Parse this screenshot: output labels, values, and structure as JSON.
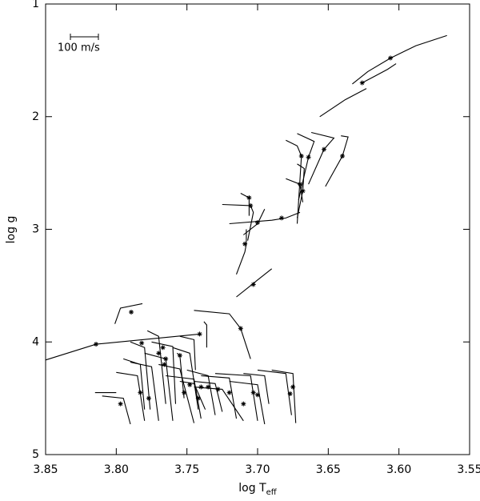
{
  "chart_data": {
    "type": "line",
    "xlabel": {
      "text": "log T",
      "subscript": "eff"
    },
    "ylabel": "log g",
    "annotation": "100 m/s",
    "xlim": [
      3.85,
      3.55
    ],
    "ylim": [
      5,
      1
    ],
    "xticks": [
      3.85,
      {
        "value": 3.8,
        "label": "3.80"
      },
      3.75,
      {
        "value": 3.7,
        "label": "3.70"
      },
      3.65,
      {
        "value": 3.6,
        "label": "3.60"
      },
      3.55
    ],
    "yticks": [
      1,
      2,
      3,
      4,
      5
    ],
    "color": "#000000",
    "tracks": [
      {
        "x": [
          3.566,
          3.588,
          3.606,
          3.622,
          3.633
        ],
        "y": [
          1.28,
          1.37,
          1.48,
          1.6,
          1.71
        ]
      },
      {
        "x": [
          3.602,
          3.608,
          3.617,
          3.626
        ],
        "y": [
          1.53,
          1.58,
          1.64,
          1.7
        ]
      },
      {
        "x": [
          3.623,
          3.638,
          3.656
        ],
        "y": [
          1.75,
          1.85,
          2.0
        ]
      },
      {
        "x": [
          3.641,
          3.636,
          3.64,
          3.652
        ],
        "y": [
          2.17,
          2.18,
          2.35,
          2.62
        ]
      },
      {
        "x": [
          3.662,
          3.646,
          3.653,
          3.664
        ],
        "y": [
          2.14,
          2.19,
          2.29,
          2.6
        ]
      },
      {
        "x": [
          3.672,
          3.66,
          3.664,
          3.671
        ],
        "y": [
          2.15,
          2.22,
          2.36,
          2.74
        ]
      },
      {
        "x": [
          3.68,
          3.672,
          3.669,
          3.672
        ],
        "y": [
          2.21,
          2.26,
          2.35,
          2.95
        ]
      },
      {
        "x": [
          3.672,
          3.667,
          3.668,
          3.672
        ],
        "y": [
          2.42,
          2.46,
          2.66,
          2.9
        ]
      },
      {
        "x": [
          3.68,
          3.67,
          3.668
        ],
        "y": [
          2.55,
          2.6,
          2.76
        ]
      },
      {
        "x": [
          3.725,
          3.705,
          3.703,
          3.707
        ],
        "y": [
          2.78,
          2.79,
          2.85,
          3.1
        ]
      },
      {
        "x": [
          3.712,
          3.706,
          3.706
        ],
        "y": [
          2.68,
          2.72,
          2.88
        ]
      },
      {
        "x": [
          3.72,
          3.69,
          3.68,
          3.67
        ],
        "y": [
          2.95,
          2.92,
          2.9,
          2.85
        ]
      },
      {
        "x": [
          3.71,
          3.7,
          3.695
        ],
        "y": [
          3.05,
          2.95,
          2.82
        ]
      },
      {
        "x": [
          3.715,
          3.709,
          3.708,
          3.708
        ],
        "y": [
          3.4,
          3.2,
          3.13,
          3.0
        ]
      },
      {
        "x": [
          3.69,
          3.7,
          3.705,
          3.715
        ],
        "y": [
          3.35,
          3.45,
          3.5,
          3.6
        ]
      },
      {
        "x": [
          3.745,
          3.72,
          3.712,
          3.705
        ],
        "y": [
          3.72,
          3.75,
          3.88,
          4.15
        ]
      },
      {
        "x": [
          3.7815,
          3.797,
          3.801
        ],
        "y": [
          3.66,
          3.7,
          3.84
        ]
      },
      {
        "x": [
          3.85,
          3.8143,
          3.741
        ],
        "y": [
          4.16,
          4.02,
          3.93
        ]
      },
      {
        "x": [
          3.775,
          3.76,
          3.758
        ],
        "y": [
          4.0,
          4.04,
          4.55
        ]
      },
      {
        "x": [
          3.76,
          3.748,
          3.742
        ],
        "y": [
          4.05,
          4.1,
          4.6
        ]
      },
      {
        "x": [
          3.79,
          3.775,
          3.77
        ],
        "y": [
          4.18,
          4.22,
          4.7
        ]
      },
      {
        "x": [
          3.8,
          3.785,
          3.78
        ],
        "y": [
          4.27,
          4.3,
          4.7
        ]
      },
      {
        "x": [
          3.81,
          3.795,
          3.79
        ],
        "y": [
          4.48,
          4.5,
          4.73
        ]
      },
      {
        "x": [
          3.77,
          3.755,
          3.745
        ],
        "y": [
          4.2,
          4.24,
          4.72
        ]
      },
      {
        "x": [
          3.78,
          3.765,
          3.76
        ],
        "y": [
          4.1,
          4.15,
          4.7
        ]
      },
      {
        "x": [
          3.75,
          3.735,
          3.73
        ],
        "y": [
          4.25,
          4.3,
          4.65
        ]
      },
      {
        "x": [
          3.74,
          3.72,
          3.715
        ],
        "y": [
          4.3,
          4.32,
          4.68
        ]
      },
      {
        "x": [
          3.745,
          3.73,
          3.725
        ],
        "y": [
          4.35,
          4.37,
          4.62
        ]
      },
      {
        "x": [
          3.73,
          3.705,
          3.7
        ],
        "y": [
          4.28,
          4.3,
          4.7
        ]
      },
      {
        "x": [
          3.72,
          3.7,
          3.695
        ],
        "y": [
          4.35,
          4.38,
          4.73
        ]
      },
      {
        "x": [
          3.71,
          3.695,
          3.692
        ],
        "y": [
          4.28,
          4.3,
          4.55
        ]
      },
      {
        "x": [
          3.69,
          3.675,
          3.673
        ],
        "y": [
          4.25,
          4.28,
          4.72
        ]
      },
      {
        "x": [
          3.7,
          3.68,
          3.676
        ],
        "y": [
          4.25,
          4.28,
          4.65
        ]
      },
      {
        "x": [
          3.745,
          3.725,
          3.71
        ],
        "y": [
          4.4,
          4.42,
          4.7
        ]
      },
      {
        "x": [
          3.765,
          3.745,
          3.74
        ],
        "y": [
          4.3,
          4.33,
          4.68
        ]
      },
      {
        "x": [
          3.755,
          3.745,
          3.737
        ],
        "y": [
          4.35,
          4.37,
          4.6
        ]
      },
      {
        "x": [
          3.778,
          3.77,
          3.765
        ],
        "y": [
          3.9,
          3.95,
          4.55
        ]
      },
      {
        "x": [
          3.757,
          3.755,
          3.752
        ],
        "y": [
          4.1,
          4.12,
          4.5
        ]
      },
      {
        "x": [
          3.795,
          3.783,
          3.78
        ],
        "y": [
          4.15,
          4.2,
          4.6
        ]
      },
      {
        "x": [
          3.755,
          3.745,
          3.744
        ],
        "y": [
          3.95,
          3.98,
          4.25
        ]
      },
      {
        "x": [
          3.79,
          3.78,
          3.776
        ],
        "y": [
          4.0,
          4.05,
          4.6
        ]
      },
      {
        "x": [
          3.815,
          3.8
        ],
        "y": [
          4.45,
          4.45
        ]
      },
      {
        "x": [
          3.738,
          3.736,
          3.736
        ],
        "y": [
          3.82,
          3.85,
          4.05
        ]
      }
    ],
    "stars": {
      "x": [
        3.606,
        3.626,
        3.64,
        3.653,
        3.664,
        3.669,
        3.668,
        3.67,
        3.705,
        3.706,
        3.683,
        3.7,
        3.709,
        3.703,
        3.712,
        3.7894,
        3.8143,
        3.741,
        3.765,
        3.748,
        3.777,
        3.783,
        3.797,
        3.752,
        3.77,
        3.735,
        3.72,
        3.728,
        3.703,
        3.7,
        3.675,
        3.677,
        3.71,
        3.742,
        3.74,
        3.766,
        3.755,
        3.782,
        3.767
      ],
      "y": [
        1.48,
        1.7,
        2.35,
        2.29,
        2.36,
        2.35,
        2.66,
        2.6,
        2.79,
        2.72,
        2.9,
        2.94,
        3.13,
        3.49,
        3.88,
        3.735,
        4.02,
        3.93,
        4.15,
        4.38,
        4.5,
        4.45,
        4.55,
        4.45,
        4.1,
        4.4,
        4.45,
        4.42,
        4.45,
        4.47,
        4.4,
        4.46,
        4.55,
        4.5,
        4.4,
        4.2,
        4.12,
        4.01,
        4.05
      ]
    }
  }
}
